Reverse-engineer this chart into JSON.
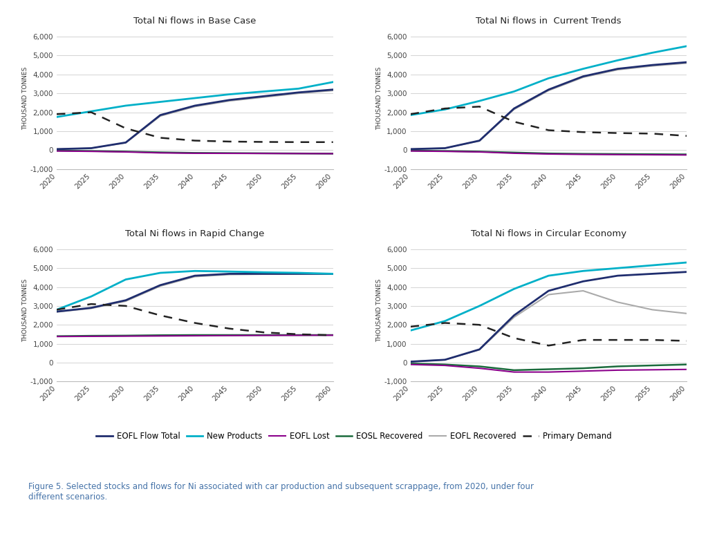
{
  "titles": [
    "Total Ni flows in Base Case",
    "Total Ni flows in  Current Trends",
    "Total Ni flows in Rapid Change",
    "Total Ni flows in Circular Economy"
  ],
  "years": [
    2020,
    2025,
    2030,
    2035,
    2040,
    2045,
    2050,
    2055,
    2060
  ],
  "ylim": [
    -1000,
    6500
  ],
  "yticks": [
    -1000,
    0,
    1000,
    2000,
    3000,
    4000,
    5000,
    6000
  ],
  "scenarios": {
    "Base Case": {
      "New_Products": [
        1750,
        2050,
        2350,
        2550,
        2750,
        2950,
        3100,
        3250,
        3600
      ],
      "EOFL_Flow_Total": [
        50,
        100,
        400,
        1850,
        2350,
        2650,
        2850,
        3050,
        3200
      ],
      "EOFL_Recovered": [
        50,
        100,
        380,
        1800,
        2300,
        2600,
        2800,
        3000,
        3150
      ],
      "EOSL_Recovered": [
        -30,
        -50,
        -80,
        -120,
        -150,
        -160,
        -170,
        -180,
        -190
      ],
      "EOFL_Lost": [
        -50,
        -70,
        -100,
        -150,
        -170,
        -175,
        -180,
        -185,
        -190
      ],
      "Primary_Demand": [
        1900,
        2000,
        1150,
        650,
        500,
        450,
        430,
        420,
        420
      ]
    },
    "Current Trends": {
      "New_Products": [
        1850,
        2150,
        2600,
        3100,
        3800,
        4300,
        4750,
        5150,
        5500
      ],
      "EOFL_Flow_Total": [
        50,
        100,
        500,
        2200,
        3200,
        3900,
        4300,
        4500,
        4650
      ],
      "EOFL_Recovered": [
        50,
        100,
        480,
        2150,
        3150,
        3850,
        4250,
        4450,
        4600
      ],
      "EOSL_Recovered": [
        -30,
        -50,
        -80,
        -130,
        -180,
        -200,
        -210,
        -220,
        -230
      ],
      "EOFL_Lost": [
        -50,
        -70,
        -100,
        -170,
        -210,
        -230,
        -240,
        -250,
        -260
      ],
      "Primary_Demand": [
        1900,
        2200,
        2300,
        1500,
        1050,
        950,
        900,
        870,
        750
      ]
    },
    "Rapid Change": {
      "New_Products": [
        2800,
        3500,
        4400,
        4750,
        4850,
        4820,
        4780,
        4750,
        4700
      ],
      "EOFL_Flow_Total": [
        2700,
        2900,
        3300,
        4100,
        4600,
        4700,
        4700,
        4700,
        4700
      ],
      "EOFL_Recovered": [
        2680,
        2870,
        3250,
        4050,
        4550,
        4660,
        4680,
        4690,
        4690
      ],
      "EOSL_Recovered": [
        1400,
        1420,
        1430,
        1450,
        1460,
        1460,
        1460,
        1460,
        1460
      ],
      "EOFL_Lost": [
        1380,
        1390,
        1400,
        1410,
        1420,
        1430,
        1440,
        1445,
        1450
      ],
      "Primary_Demand": [
        2800,
        3100,
        3000,
        2500,
        2100,
        1800,
        1600,
        1500,
        1450
      ]
    },
    "Circular Economy": {
      "New_Products": [
        1700,
        2200,
        3000,
        3900,
        4600,
        4850,
        5000,
        5150,
        5300
      ],
      "EOFL_Flow_Total": [
        50,
        150,
        700,
        2500,
        3800,
        4300,
        4600,
        4700,
        4800
      ],
      "EOFL_Recovered": [
        50,
        150,
        680,
        2400,
        3600,
        3800,
        3200,
        2800,
        2600
      ],
      "EOSL_Recovered": [
        -50,
        -100,
        -200,
        -400,
        -350,
        -300,
        -200,
        -150,
        -100
      ],
      "EOFL_Lost": [
        -100,
        -150,
        -300,
        -500,
        -500,
        -450,
        -400,
        -380,
        -360
      ],
      "Primary_Demand": [
        1900,
        2100,
        2000,
        1300,
        900,
        1200,
        1200,
        1200,
        1150
      ]
    }
  },
  "colors": {
    "EOFL_Flow_Total": "#1f2d6e",
    "New_Products": "#00b0c8",
    "EOFL_Lost": "#8b008b",
    "EOSL_Recovered": "#1a6b3c",
    "EOFL_Recovered": "#aaaaaa",
    "Primary_Demand": "#222222"
  },
  "legend_labels": {
    "EOFL_Flow_Total": "EOFL Flow Total",
    "New_Products": "New Products",
    "EOFL_Lost": "EOFL Lost",
    "EOSL_Recovered": "EOSL Recovered",
    "EOFL_Recovered": "EOFL Recovered",
    "Primary_Demand": "Primary Demand"
  },
  "ylabel": "THOUSAND TONNES",
  "figure_caption": "Figure 5. Selected stocks and flows for Ni associated with car production and subsequent scrappage, from 2020, under four\ndifferent scenarios.",
  "background_color": "#ffffff",
  "line_widths": {
    "EOFL_Flow_Total": 2.0,
    "New_Products": 2.0,
    "EOFL_Lost": 1.5,
    "EOSL_Recovered": 1.8,
    "EOFL_Recovered": 1.5,
    "Primary_Demand": 1.8
  }
}
